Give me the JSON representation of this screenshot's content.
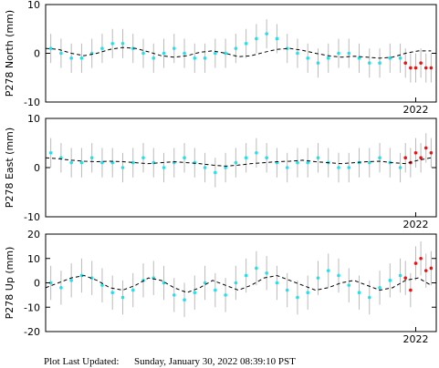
{
  "chart_data": [
    {
      "type": "scatter",
      "ylabel": "P278 North (mm)",
      "xlim": [
        2014.8,
        2022.4
      ],
      "xticks": [
        2022
      ],
      "ylim": [
        -10,
        10
      ],
      "yticks": [
        10,
        0,
        -10
      ],
      "series": [
        {
          "color": "#22e0f0",
          "errcolor": "#bbbbbb",
          "x": [
            2014.9,
            2015.1,
            2015.3,
            2015.5,
            2015.7,
            2015.9,
            2016.1,
            2016.3,
            2016.5,
            2016.7,
            2016.9,
            2017.1,
            2017.3,
            2017.5,
            2017.7,
            2017.9,
            2018.1,
            2018.3,
            2018.5,
            2018.7,
            2018.9,
            2019.1,
            2019.3,
            2019.5,
            2019.7,
            2019.9,
            2020.1,
            2020.3,
            2020.5,
            2020.7,
            2020.9,
            2021.1,
            2021.3,
            2021.5,
            2021.7
          ],
          "values": [
            1,
            0,
            -1,
            -1,
            0,
            1,
            2,
            2,
            1,
            0,
            -1,
            0,
            1,
            0,
            -1,
            -1,
            0,
            0,
            1,
            2,
            3,
            4,
            3,
            1,
            0,
            -1,
            -2,
            -1,
            0,
            0,
            -1,
            -2,
            -2,
            -1,
            -1
          ],
          "errors": [
            3,
            3,
            3,
            3,
            3,
            3,
            3,
            3,
            3,
            3,
            3,
            3,
            3,
            3,
            3,
            3,
            3,
            3,
            3,
            3,
            3,
            3,
            3,
            3,
            3,
            3,
            3,
            3,
            3,
            3,
            3,
            3,
            3,
            3,
            3
          ]
        },
        {
          "color": "#ee1111",
          "errcolor": "#bbbbbb",
          "x": [
            2021.8,
            2021.9,
            2022.0,
            2022.1,
            2022.2,
            2022.3
          ],
          "values": [
            -2,
            -3,
            -3,
            -2,
            -3,
            -3
          ],
          "errors": [
            3,
            3,
            3,
            3,
            3,
            3
          ]
        },
        {
          "style": "dashed",
          "color": "#000000",
          "x": [
            2014.8,
            2015.05,
            2015.3,
            2015.55,
            2015.8,
            2016.05,
            2016.3,
            2016.55,
            2016.8,
            2017.05,
            2017.3,
            2017.55,
            2017.8,
            2018.05,
            2018.3,
            2018.55,
            2018.8,
            2019.05,
            2019.3,
            2019.55,
            2019.8,
            2020.05,
            2020.3,
            2020.55,
            2020.8,
            2021.05,
            2021.3,
            2021.55,
            2021.8,
            2022.05,
            2022.3
          ],
          "values": [
            1,
            0.8,
            0,
            -0.5,
            0,
            0.8,
            1.2,
            1,
            0.3,
            -0.5,
            -0.8,
            -0.5,
            0.2,
            0.5,
            0,
            -0.7,
            -0.5,
            0.2,
            0.8,
            1,
            0.6,
            0,
            -0.5,
            -0.8,
            -0.6,
            -0.8,
            -1,
            -0.8,
            0,
            0.5,
            0.5
          ]
        }
      ]
    },
    {
      "type": "scatter",
      "ylabel": "P278 East (mm)",
      "xlim": [
        2014.8,
        2022.4
      ],
      "xticks": [
        2022
      ],
      "ylim": [
        -10,
        10
      ],
      "yticks": [
        10,
        0,
        -10
      ],
      "series": [
        {
          "color": "#22e0f0",
          "errcolor": "#bbbbbb",
          "x": [
            2014.9,
            2015.1,
            2015.3,
            2015.5,
            2015.7,
            2015.9,
            2016.1,
            2016.3,
            2016.5,
            2016.7,
            2016.9,
            2017.1,
            2017.3,
            2017.5,
            2017.7,
            2017.9,
            2018.1,
            2018.3,
            2018.5,
            2018.7,
            2018.9,
            2019.1,
            2019.3,
            2019.5,
            2019.7,
            2019.9,
            2020.1,
            2020.3,
            2020.5,
            2020.7,
            2020.9,
            2021.1,
            2021.3,
            2021.5,
            2021.7
          ],
          "values": [
            3,
            2,
            1,
            1,
            2,
            1,
            1,
            0,
            1,
            2,
            1,
            0,
            1,
            2,
            1,
            0,
            -1,
            0,
            1,
            2,
            3,
            2,
            1,
            0,
            1,
            1,
            2,
            1,
            0,
            0,
            1,
            1,
            2,
            1,
            0
          ],
          "errors": [
            3,
            3,
            3,
            3,
            3,
            3,
            3,
            3,
            3,
            3,
            3,
            3,
            3,
            3,
            3,
            3,
            3,
            3,
            3,
            3,
            3,
            3,
            3,
            3,
            3,
            3,
            3,
            3,
            3,
            3,
            3,
            3,
            3,
            3,
            3
          ]
        },
        {
          "color": "#ee1111",
          "errcolor": "#bbbbbb",
          "x": [
            2021.8,
            2021.9,
            2022.0,
            2022.1,
            2022.2,
            2022.3
          ],
          "values": [
            2,
            1,
            3,
            2,
            4,
            3
          ],
          "errors": [
            3,
            3,
            3,
            3,
            3,
            3
          ]
        },
        {
          "style": "dashed",
          "color": "#000000",
          "x": [
            2014.8,
            2015.05,
            2015.3,
            2015.55,
            2015.8,
            2016.05,
            2016.3,
            2016.55,
            2016.8,
            2017.05,
            2017.3,
            2017.55,
            2017.8,
            2018.05,
            2018.3,
            2018.55,
            2018.8,
            2019.05,
            2019.3,
            2019.55,
            2019.8,
            2020.05,
            2020.3,
            2020.55,
            2020.8,
            2021.05,
            2021.3,
            2021.55,
            2021.8,
            2022.05,
            2022.3
          ],
          "values": [
            2,
            1.8,
            1.5,
            1.3,
            1.2,
            1.3,
            1.2,
            1,
            0.8,
            1,
            1.2,
            1,
            0.8,
            0.5,
            0.3,
            0.5,
            0.8,
            1,
            1.2,
            1.3,
            1.5,
            1.2,
            1,
            0.8,
            1,
            1.2,
            1.3,
            1,
            0.8,
            1.5,
            2
          ]
        }
      ]
    },
    {
      "type": "scatter",
      "ylabel": "P278 Up (mm)",
      "xlim": [
        2014.8,
        2022.4
      ],
      "xticks": [
        2022
      ],
      "ylim": [
        -20,
        20
      ],
      "yticks": [
        20,
        10,
        0,
        -10,
        -20
      ],
      "series": [
        {
          "color": "#22e0f0",
          "errcolor": "#bbbbbb",
          "x": [
            2014.9,
            2015.1,
            2015.3,
            2015.5,
            2015.7,
            2015.9,
            2016.1,
            2016.3,
            2016.5,
            2016.7,
            2016.9,
            2017.1,
            2017.3,
            2017.5,
            2017.7,
            2017.9,
            2018.1,
            2018.3,
            2018.5,
            2018.7,
            2018.9,
            2019.1,
            2019.3,
            2019.5,
            2019.7,
            2019.9,
            2020.1,
            2020.3,
            2020.5,
            2020.7,
            2020.9,
            2021.1,
            2021.3,
            2021.5,
            2021.7
          ],
          "values": [
            0,
            -2,
            1,
            3,
            2,
            -1,
            -4,
            -6,
            -3,
            1,
            2,
            0,
            -5,
            -7,
            -4,
            0,
            -3,
            -5,
            0,
            3,
            6,
            4,
            0,
            -3,
            -6,
            -4,
            2,
            5,
            3,
            -1,
            -4,
            -6,
            -2,
            1,
            3
          ],
          "errors": [
            7,
            7,
            7,
            7,
            7,
            7,
            7,
            7,
            7,
            7,
            7,
            7,
            7,
            7,
            7,
            7,
            7,
            7,
            7,
            7,
            7,
            7,
            7,
            7,
            7,
            7,
            7,
            7,
            7,
            7,
            7,
            7,
            7,
            7,
            7
          ]
        },
        {
          "color": "#ee1111",
          "errcolor": "#bbbbbb",
          "x": [
            2021.8,
            2021.9,
            2022.0,
            2022.1,
            2022.2,
            2022.3
          ],
          "values": [
            2,
            -3,
            8,
            10,
            5,
            6
          ],
          "errors": [
            7,
            7,
            7,
            7,
            7,
            7
          ]
        },
        {
          "style": "dashed",
          "color": "#000000",
          "x": [
            2014.8,
            2015.05,
            2015.3,
            2015.55,
            2015.8,
            2016.05,
            2016.3,
            2016.55,
            2016.8,
            2017.05,
            2017.3,
            2017.55,
            2017.8,
            2018.05,
            2018.3,
            2018.55,
            2018.8,
            2019.05,
            2019.3,
            2019.55,
            2019.8,
            2020.05,
            2020.3,
            2020.55,
            2020.8,
            2021.05,
            2021.3,
            2021.55,
            2021.8,
            2022.05,
            2022.3
          ],
          "values": [
            -2,
            0,
            2,
            3,
            1,
            -2,
            -3,
            -1,
            2,
            1,
            -2,
            -4,
            -2,
            1,
            -1,
            -3,
            -1,
            2,
            3,
            1,
            -1,
            -3,
            -2,
            0,
            1,
            -1,
            -3,
            -2,
            1,
            2,
            -1
          ]
        }
      ]
    }
  ],
  "footer": {
    "label": "Plot Last Updated:",
    "value": "Sunday, January 30, 2022 08:39:10 PST"
  }
}
